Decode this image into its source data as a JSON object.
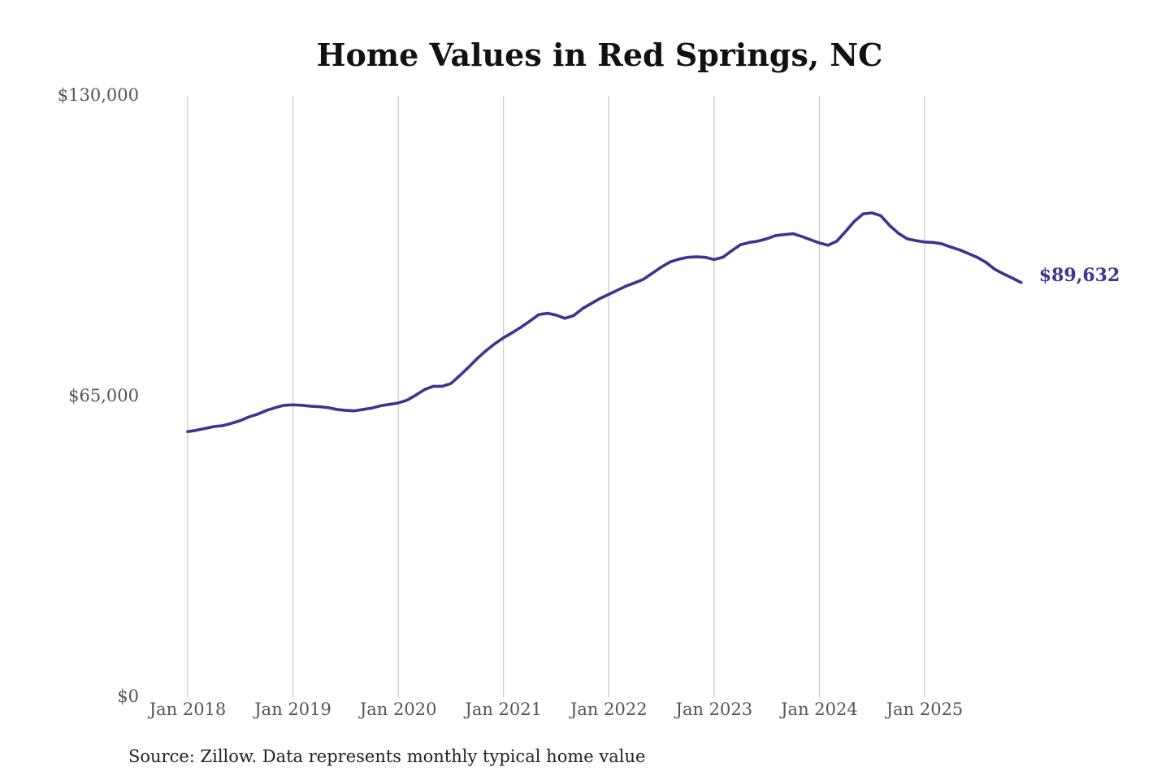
{
  "chart_data": {
    "type": "line",
    "title": "Home Values in Red Springs, NC",
    "source": "Source: Zillow. Data represents monthly typical home value",
    "ylim": [
      0,
      130000
    ],
    "y_ticks": [
      {
        "value": 0,
        "label": "$0"
      },
      {
        "value": 65000,
        "label": "$65,000"
      },
      {
        "value": 130000,
        "label": "$130,000"
      }
    ],
    "x_ticks": [
      {
        "value": "2018-01",
        "label": "Jan 2018"
      },
      {
        "value": "2019-01",
        "label": "Jan 2019"
      },
      {
        "value": "2020-01",
        "label": "Jan 2020"
      },
      {
        "value": "2021-01",
        "label": "Jan 2021"
      },
      {
        "value": "2022-01",
        "label": "Jan 2022"
      },
      {
        "value": "2023-01",
        "label": "Jan 2023"
      },
      {
        "value": "2024-01",
        "label": "Jan 2024"
      },
      {
        "value": "2025-01",
        "label": "Jan 2025"
      }
    ],
    "x_range": [
      "2018-01",
      "2025-09"
    ],
    "grid": {
      "vertical": true,
      "horizontal": false
    },
    "series": [
      {
        "color": "#3a3591",
        "end_label": "$89,632",
        "points": [
          [
            "2018-01",
            57400
          ],
          [
            "2018-02",
            57700
          ],
          [
            "2018-03",
            58100
          ],
          [
            "2018-04",
            58500
          ],
          [
            "2018-05",
            58700
          ],
          [
            "2018-06",
            59200
          ],
          [
            "2018-07",
            59800
          ],
          [
            "2018-08",
            60600
          ],
          [
            "2018-09",
            61200
          ],
          [
            "2018-10",
            62000
          ],
          [
            "2018-11",
            62600
          ],
          [
            "2018-12",
            63100
          ],
          [
            "2019-01",
            63200
          ],
          [
            "2019-02",
            63100
          ],
          [
            "2019-03",
            62900
          ],
          [
            "2019-04",
            62800
          ],
          [
            "2019-05",
            62600
          ],
          [
            "2019-06",
            62200
          ],
          [
            "2019-07",
            62000
          ],
          [
            "2019-08",
            61900
          ],
          [
            "2019-09",
            62200
          ],
          [
            "2019-10",
            62500
          ],
          [
            "2019-11",
            63000
          ],
          [
            "2019-12",
            63300
          ],
          [
            "2020-01",
            63600
          ],
          [
            "2020-02",
            64200
          ],
          [
            "2020-03",
            65300
          ],
          [
            "2020-04",
            66500
          ],
          [
            "2020-05",
            67200
          ],
          [
            "2020-06",
            67200
          ],
          [
            "2020-07",
            67800
          ],
          [
            "2020-08",
            69500
          ],
          [
            "2020-09",
            71300
          ],
          [
            "2020-10",
            73200
          ],
          [
            "2020-11",
            74900
          ],
          [
            "2020-12",
            76400
          ],
          [
            "2021-01",
            77700
          ],
          [
            "2021-02",
            78800
          ],
          [
            "2021-03",
            80000
          ],
          [
            "2021-04",
            81300
          ],
          [
            "2021-05",
            82700
          ],
          [
            "2021-06",
            83000
          ],
          [
            "2021-07",
            82600
          ],
          [
            "2021-08",
            81900
          ],
          [
            "2021-09",
            82500
          ],
          [
            "2021-10",
            84000
          ],
          [
            "2021-11",
            85100
          ],
          [
            "2021-12",
            86200
          ],
          [
            "2022-01",
            87100
          ],
          [
            "2022-02",
            88000
          ],
          [
            "2022-03",
            88900
          ],
          [
            "2022-04",
            89600
          ],
          [
            "2022-05",
            90400
          ],
          [
            "2022-06",
            91700
          ],
          [
            "2022-07",
            93000
          ],
          [
            "2022-08",
            94100
          ],
          [
            "2022-09",
            94700
          ],
          [
            "2022-10",
            95100
          ],
          [
            "2022-11",
            95200
          ],
          [
            "2022-12",
            95100
          ],
          [
            "2023-01",
            94600
          ],
          [
            "2023-02",
            95100
          ],
          [
            "2023-03",
            96500
          ],
          [
            "2023-04",
            97800
          ],
          [
            "2023-05",
            98300
          ],
          [
            "2023-06",
            98600
          ],
          [
            "2023-07",
            99100
          ],
          [
            "2023-08",
            99800
          ],
          [
            "2023-09",
            100000
          ],
          [
            "2023-10",
            100200
          ],
          [
            "2023-11",
            99600
          ],
          [
            "2023-12",
            98900
          ],
          [
            "2024-01",
            98200
          ],
          [
            "2024-02",
            97700
          ],
          [
            "2024-03",
            98600
          ],
          [
            "2024-04",
            100700
          ],
          [
            "2024-05",
            102900
          ],
          [
            "2024-06",
            104500
          ],
          [
            "2024-07",
            104700
          ],
          [
            "2024-08",
            104100
          ],
          [
            "2024-09",
            102000
          ],
          [
            "2024-10",
            100300
          ],
          [
            "2024-11",
            99100
          ],
          [
            "2024-12",
            98700
          ],
          [
            "2025-01",
            98400
          ],
          [
            "2025-02",
            98300
          ],
          [
            "2025-03",
            98000
          ],
          [
            "2025-04",
            97300
          ],
          [
            "2025-05",
            96700
          ],
          [
            "2025-06",
            95900
          ],
          [
            "2025-07",
            95100
          ],
          [
            "2025-08",
            94000
          ],
          [
            "2025-09",
            92500
          ],
          [
            "2025-10",
            91500
          ],
          [
            "2025-11",
            90600
          ],
          [
            "2025-12",
            89632
          ]
        ]
      }
    ]
  }
}
